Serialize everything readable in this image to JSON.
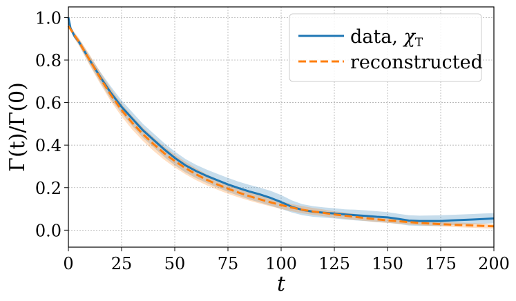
{
  "chart_data": {
    "type": "line",
    "title": "",
    "xlabel": "t",
    "ylabel": "Γ(t)/Γ(0)",
    "xlim": [
      0,
      200
    ],
    "ylim": [
      -0.08,
      1.05
    ],
    "xticks": [
      0,
      25,
      50,
      75,
      100,
      125,
      150,
      175,
      200
    ],
    "xtick_labels": [
      "0",
      "25",
      "50",
      "75",
      "100",
      "125",
      "150",
      "175",
      "200"
    ],
    "yticks": [
      0.0,
      0.2,
      0.4,
      0.6,
      0.8,
      1.0
    ],
    "ytick_labels": [
      "0.0",
      "0.2",
      "0.4",
      "0.6",
      "0.8",
      "1.0"
    ],
    "grid": true,
    "legend_position": "top-right",
    "series": [
      {
        "name": "data, χT",
        "legend_main": "data, ",
        "legend_symbol": "χ",
        "legend_sub": "T",
        "color": "#1f77b4",
        "style": "solid",
        "x": [
          0,
          1,
          3,
          5,
          10,
          15,
          20,
          25,
          30,
          35,
          40,
          45,
          50,
          55,
          60,
          65,
          70,
          75,
          80,
          85,
          90,
          95,
          100,
          105,
          110,
          115,
          120,
          125,
          130,
          135,
          140,
          145,
          150,
          155,
          160,
          165,
          170,
          175,
          180,
          185,
          190,
          195,
          200
        ],
        "y": [
          1.0,
          0.95,
          0.91,
          0.885,
          0.8,
          0.72,
          0.645,
          0.58,
          0.525,
          0.47,
          0.425,
          0.38,
          0.34,
          0.305,
          0.278,
          0.255,
          0.235,
          0.215,
          0.198,
          0.182,
          0.168,
          0.152,
          0.132,
          0.11,
          0.095,
          0.087,
          0.082,
          0.078,
          0.074,
          0.07,
          0.067,
          0.063,
          0.06,
          0.053,
          0.045,
          0.043,
          0.043,
          0.043,
          0.046,
          0.048,
          0.05,
          0.052,
          0.055
        ],
        "band_low": [
          1.0,
          0.94,
          0.9,
          0.87,
          0.78,
          0.695,
          0.615,
          0.55,
          0.49,
          0.435,
          0.39,
          0.345,
          0.305,
          0.272,
          0.245,
          0.222,
          0.2,
          0.18,
          0.162,
          0.145,
          0.13,
          0.115,
          0.1,
          0.083,
          0.07,
          0.063,
          0.059,
          0.055,
          0.05,
          0.046,
          0.042,
          0.038,
          0.035,
          0.029,
          0.022,
          0.02,
          0.02,
          0.02,
          0.023,
          0.026,
          0.028,
          0.03,
          0.033
        ],
        "band_high": [
          1.0,
          0.96,
          0.925,
          0.9,
          0.82,
          0.745,
          0.675,
          0.61,
          0.555,
          0.5,
          0.455,
          0.41,
          0.37,
          0.335,
          0.307,
          0.285,
          0.265,
          0.246,
          0.228,
          0.213,
          0.2,
          0.185,
          0.165,
          0.14,
          0.122,
          0.113,
          0.107,
          0.103,
          0.098,
          0.096,
          0.093,
          0.089,
          0.085,
          0.077,
          0.07,
          0.068,
          0.069,
          0.07,
          0.072,
          0.074,
          0.076,
          0.078,
          0.08
        ]
      },
      {
        "name": "reconstructed",
        "color": "#ff7f0e",
        "style": "dashed",
        "x": [
          0,
          1,
          3,
          5,
          10,
          15,
          20,
          25,
          30,
          35,
          40,
          45,
          50,
          55,
          60,
          65,
          70,
          75,
          80,
          85,
          90,
          95,
          100,
          105,
          110,
          115,
          120,
          125,
          130,
          135,
          140,
          145,
          150,
          155,
          160,
          165,
          170,
          175,
          180,
          185,
          190,
          195,
          200
        ],
        "y": [
          0.96,
          0.945,
          0.915,
          0.885,
          0.8,
          0.715,
          0.635,
          0.565,
          0.505,
          0.452,
          0.405,
          0.362,
          0.325,
          0.292,
          0.263,
          0.237,
          0.215,
          0.195,
          0.177,
          0.16,
          0.145,
          0.131,
          0.118,
          0.106,
          0.096,
          0.088,
          0.081,
          0.074,
          0.068,
          0.062,
          0.056,
          0.051,
          0.046,
          0.042,
          0.038,
          0.034,
          0.031,
          0.028,
          0.026,
          0.024,
          0.022,
          0.02,
          0.018
        ],
        "band_low": [
          0.955,
          0.935,
          0.9,
          0.868,
          0.775,
          0.688,
          0.605,
          0.535,
          0.473,
          0.42,
          0.373,
          0.331,
          0.295,
          0.263,
          0.235,
          0.211,
          0.19,
          0.171,
          0.154,
          0.139,
          0.125,
          0.112,
          0.1,
          0.089,
          0.079,
          0.072,
          0.065,
          0.059,
          0.053,
          0.048,
          0.043,
          0.038,
          0.034,
          0.03,
          0.026,
          0.023,
          0.02,
          0.017,
          0.015,
          0.013,
          0.011,
          0.009,
          0.007
        ],
        "band_high": [
          0.965,
          0.955,
          0.93,
          0.902,
          0.825,
          0.742,
          0.665,
          0.595,
          0.537,
          0.484,
          0.437,
          0.393,
          0.355,
          0.321,
          0.291,
          0.263,
          0.24,
          0.219,
          0.2,
          0.181,
          0.165,
          0.15,
          0.136,
          0.123,
          0.113,
          0.104,
          0.097,
          0.089,
          0.083,
          0.076,
          0.069,
          0.064,
          0.058,
          0.054,
          0.05,
          0.045,
          0.042,
          0.039,
          0.037,
          0.035,
          0.033,
          0.031,
          0.029
        ]
      }
    ]
  }
}
